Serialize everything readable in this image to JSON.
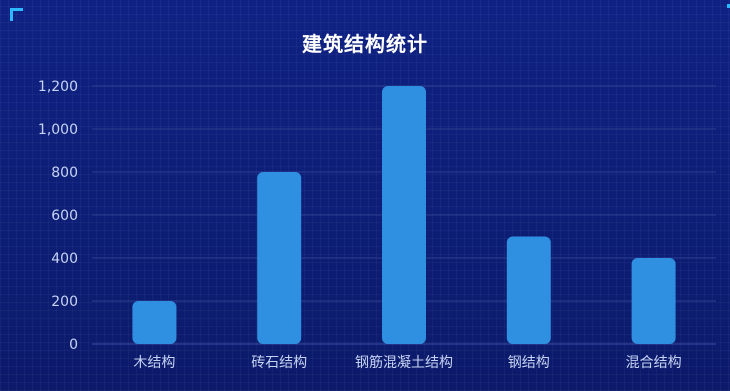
{
  "chart_data": {
    "type": "bar",
    "title": "建筑结构统计",
    "categories": [
      "木结构",
      "砖石结构",
      "钢筋混凝土结构",
      "钢结构",
      "混合结构"
    ],
    "values": [
      200,
      800,
      1200,
      500,
      400
    ],
    "yticks": [
      "0",
      "200",
      "400",
      "600",
      "800",
      "1,000",
      "1,200"
    ],
    "ylim": [
      0,
      1200
    ],
    "grid": true,
    "colors": {
      "bar": "#2f8fe0",
      "grid": "#2b3f8f",
      "axis": "#3a4fa5",
      "tick_text": "#c7d3f5",
      "title": "#ffffff"
    }
  }
}
